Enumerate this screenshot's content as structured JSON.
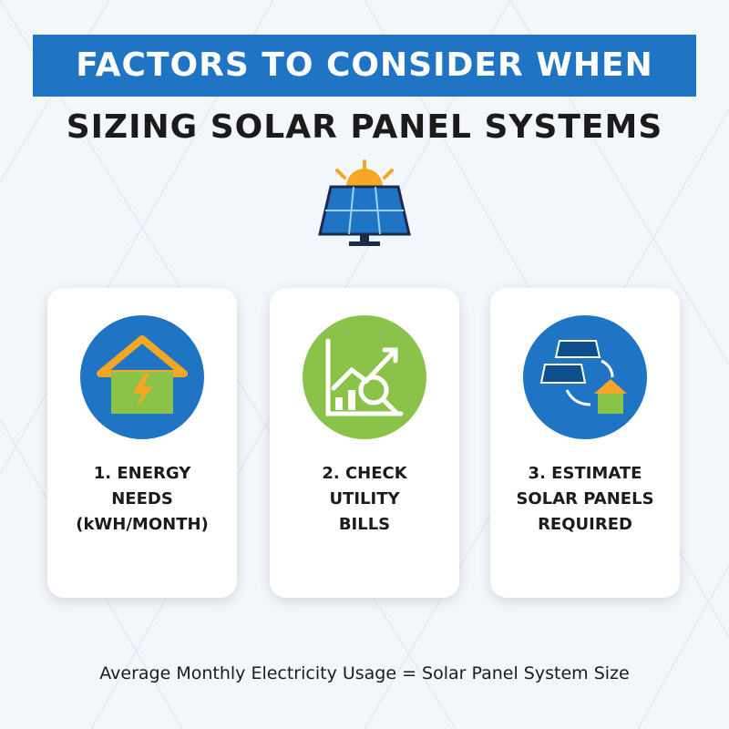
{
  "header": {
    "title_line1": "FACTORS TO CONSIDER WHEN",
    "title_line2": "SIZING SOLAR PANEL SYSTEMS"
  },
  "cards": [
    {
      "label_lines": [
        "1. ENERGY",
        "NEEDS",
        "(kWH/MONTH)"
      ]
    },
    {
      "label_lines": [
        "2. CHECK",
        "UTILITY",
        "BILLS"
      ]
    },
    {
      "label_lines": [
        "3. ESTIMATE",
        "SOLAR PANELS",
        "REQUIRED"
      ]
    }
  ],
  "footer": {
    "text": "Average Monthly Electricity Usage = Solar Panel System Size"
  }
}
